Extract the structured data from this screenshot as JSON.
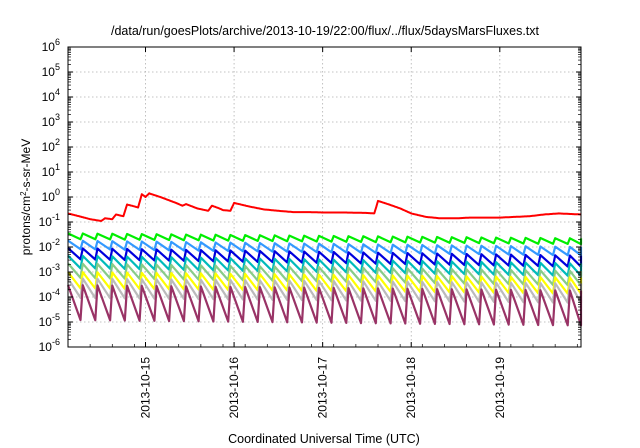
{
  "chart_data": {
    "type": "line",
    "title": "/data/run/goesPlots/archive/2013-10-19/22:00/flux/../flux/5daysMarsFluxes.txt",
    "xlabel": "Coordinated Universal Time (UTC)",
    "ylabel": {
      "prefix": "protons/cm",
      "sup": "2",
      "suffix": "-s-sr-MeV"
    },
    "y_scale": "log",
    "ylim": [
      1e-06,
      1000000.0
    ],
    "y_ticks": [
      {
        "value": 1e-06,
        "exp": "-6"
      },
      {
        "value": 1e-05,
        "exp": "-5"
      },
      {
        "value": 0.0001,
        "exp": "-4"
      },
      {
        "value": 0.001,
        "exp": "-3"
      },
      {
        "value": 0.01,
        "exp": "-2"
      },
      {
        "value": 0.1,
        "exp": "-1"
      },
      {
        "value": 1.0,
        "exp": "0"
      },
      {
        "value": 10.0,
        "exp": "1"
      },
      {
        "value": 100.0,
        "exp": "2"
      },
      {
        "value": 1000.0,
        "exp": "3"
      },
      {
        "value": 10000.0,
        "exp": "4"
      },
      {
        "value": 100000.0,
        "exp": "5"
      },
      {
        "value": 1000000.0,
        "exp": "6"
      }
    ],
    "x_axis_type": "date",
    "xlim": [
      "2013-10-14 03:00",
      "2013-10-19 22:00"
    ],
    "x_ticks": [
      "2013-10-15",
      "2013-10-16",
      "2013-10-17",
      "2013-10-18",
      "2013-10-19"
    ],
    "grid": true,
    "sawtooth_period_hours": 4,
    "series": [
      {
        "color": "#ff0000",
        "style": "profile",
        "points": [
          [
            "2013-10-14 03:00",
            0.22
          ],
          [
            "2013-10-14 06:00",
            0.17
          ],
          [
            "2013-10-14 09:00",
            0.13
          ],
          [
            "2013-10-14 12:00",
            0.11
          ],
          [
            "2013-10-14 13:00",
            0.14
          ],
          [
            "2013-10-14 15:00",
            0.13
          ],
          [
            "2013-10-14 16:00",
            0.2
          ],
          [
            "2013-10-14 18:00",
            0.17
          ],
          [
            "2013-10-14 19:00",
            0.5
          ],
          [
            "2013-10-14 21:00",
            0.42
          ],
          [
            "2013-10-14 22:00",
            0.38
          ],
          [
            "2013-10-14 23:00",
            1.3
          ],
          [
            "2013-10-15 00:00",
            1.0
          ],
          [
            "2013-10-15 01:00",
            1.4
          ],
          [
            "2013-10-15 04:00",
            1.0
          ],
          [
            "2013-10-15 08:00",
            0.6
          ],
          [
            "2013-10-15 10:00",
            0.45
          ],
          [
            "2013-10-15 11:00",
            0.52
          ],
          [
            "2013-10-15 14:00",
            0.35
          ],
          [
            "2013-10-15 17:00",
            0.28
          ],
          [
            "2013-10-15 18:00",
            0.45
          ],
          [
            "2013-10-15 20:00",
            0.35
          ],
          [
            "2013-10-15 21:00",
            0.3
          ],
          [
            "2013-10-15 23:00",
            0.28
          ],
          [
            "2013-10-16 00:00",
            0.58
          ],
          [
            "2013-10-16 04:00",
            0.42
          ],
          [
            "2013-10-16 08:00",
            0.32
          ],
          [
            "2013-10-16 12:00",
            0.28
          ],
          [
            "2013-10-16 16:00",
            0.25
          ],
          [
            "2013-10-16 20:00",
            0.25
          ],
          [
            "2013-10-17 00:00",
            0.24
          ],
          [
            "2013-10-17 06:00",
            0.24
          ],
          [
            "2013-10-17 12:00",
            0.23
          ],
          [
            "2013-10-17 14:00",
            0.22
          ],
          [
            "2013-10-17 15:00",
            0.7
          ],
          [
            "2013-10-17 18:00",
            0.5
          ],
          [
            "2013-10-17 21:00",
            0.35
          ],
          [
            "2013-10-18 00:00",
            0.22
          ],
          [
            "2013-10-18 04:00",
            0.16
          ],
          [
            "2013-10-18 08:00",
            0.14
          ],
          [
            "2013-10-18 12:00",
            0.14
          ],
          [
            "2013-10-18 16:00",
            0.15
          ],
          [
            "2013-10-18 20:00",
            0.15
          ],
          [
            "2013-10-19 00:00",
            0.15
          ],
          [
            "2013-10-19 04:00",
            0.16
          ],
          [
            "2013-10-19 08:00",
            0.17
          ],
          [
            "2013-10-19 12:00",
            0.2
          ],
          [
            "2013-10-19 16:00",
            0.22
          ],
          [
            "2013-10-19 22:00",
            0.2
          ]
        ],
        "sawtooth": {
          "amplitude": 0.12,
          "peak_scale": 1.0
        }
      },
      {
        "color": "#00ee00",
        "style": "sawtooth",
        "start_high": 0.035,
        "end_high": 0.022,
        "ratio": 1.7
      },
      {
        "color": "#3399ff",
        "style": "sawtooth",
        "start_high": 0.018,
        "end_high": 0.01,
        "ratio": 2.2
      },
      {
        "color": "#0000dd",
        "style": "sawtooth",
        "start_high": 0.009,
        "end_high": 0.0045,
        "ratio": 2.8
      },
      {
        "color": "#00bbbb",
        "style": "sawtooth",
        "start_high": 0.0045,
        "end_high": 0.0022,
        "ratio": 3.2
      },
      {
        "color": "#88cc88",
        "style": "sawtooth",
        "start_high": 0.0022,
        "end_high": 0.0011,
        "ratio": 3.8
      },
      {
        "color": "#ffff00",
        "style": "sawtooth",
        "start_high": 0.001,
        "end_high": 0.0006,
        "ratio": 4.5
      },
      {
        "color": "#bbbbbb",
        "style": "sawtooth",
        "start_high": 0.00055,
        "end_high": 0.00035,
        "ratio": 6.0
      },
      {
        "color": "#993366",
        "style": "sawtooth",
        "start_high": 0.0003,
        "end_high": 0.00018,
        "ratio": 25.0
      }
    ]
  }
}
